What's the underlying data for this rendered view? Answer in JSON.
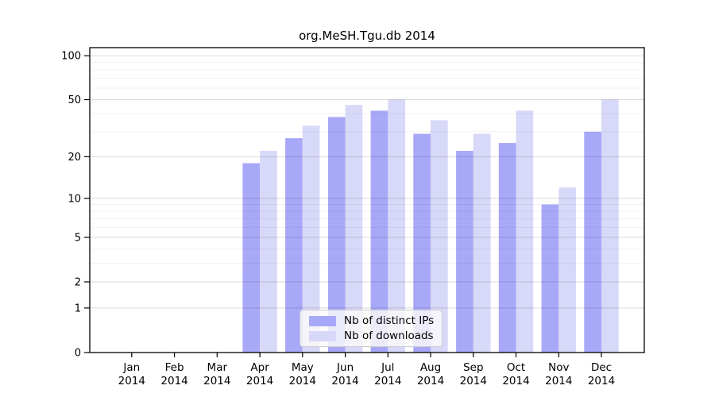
{
  "chart_data": {
    "type": "bar",
    "title": "org.MeSH.Tgu.db 2014",
    "categories": [
      "Jan",
      "Feb",
      "Mar",
      "Apr",
      "May",
      "Jun",
      "Jul",
      "Aug",
      "Sep",
      "Oct",
      "Nov",
      "Dec"
    ],
    "category_year": "2014",
    "series": [
      {
        "name": "Nb of distinct IPs",
        "color": "#a8a8f8",
        "values": [
          0,
          0,
          0,
          18,
          27,
          38,
          42,
          29,
          22,
          25,
          9,
          30
        ]
      },
      {
        "name": "Nb of downloads",
        "color": "#d8d8f9",
        "values": [
          0,
          0,
          0,
          22,
          33,
          46,
          50,
          36,
          29,
          42,
          12,
          50
        ]
      }
    ],
    "yscale": "log1p",
    "ylim": [
      0,
      100
    ],
    "yticks": [
      0,
      1,
      2,
      5,
      10,
      20,
      50,
      100
    ],
    "yticks_minor": [
      3,
      4,
      6,
      7,
      8,
      9,
      30,
      40,
      60,
      70,
      80,
      90
    ],
    "grid": true,
    "legend_position": "lower center",
    "axis_color": "#000000",
    "background_color": "#ffffff"
  }
}
